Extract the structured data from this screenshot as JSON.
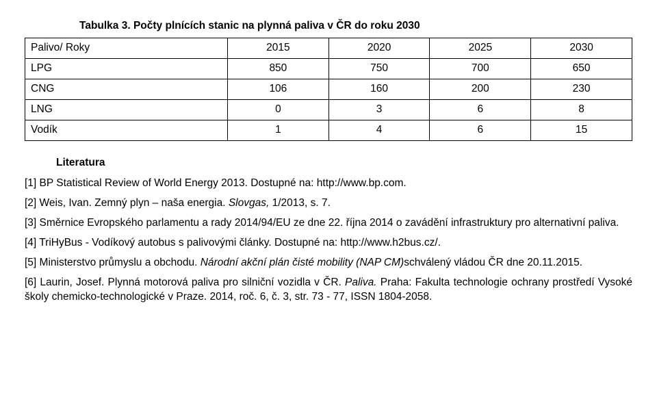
{
  "caption": "Tabulka 3.  Počty plnících stanic na plynná paliva v ČR do roku 2030",
  "table": {
    "header": [
      "Palivo/ Roky",
      "2015",
      "2020",
      "2025",
      "2030"
    ],
    "rows": [
      [
        "LPG",
        "850",
        "750",
        "700",
        "650"
      ],
      [
        "CNG",
        "106",
        "160",
        "200",
        "230"
      ],
      [
        "LNG",
        "0",
        "3",
        "6",
        "8"
      ],
      [
        "Vodík",
        "1",
        "4",
        "6",
        "15"
      ]
    ],
    "col_widths": [
      "28%",
      "18%",
      "18%",
      "18%",
      "18%"
    ]
  },
  "lit_heading": "Literatura",
  "refs": {
    "r1a": "[1] BP Statistical Review of World Energy 2013. Dostupné na:  http://www.bp.com.",
    "r2a": "[2] Weis, Ivan. Zemný plyn – naša energia. ",
    "r2b": "Slovgas,",
    "r2c": " 1/2013, s. 7.",
    "r3a": "[3] Směrnice Evropského parlamentu a rady 2014/94/EU ze dne 22. října 2014 o zavádění infrastruktury pro alternativní paliva.",
    "r4a": "[4] TriHyBus - Vodíkový autobus s palivovými články. Dostupné na: http://www.h2bus.cz/.",
    "r5a": "[5] Ministerstvo průmyslu a obchodu.  ",
    "r5b": "Národní akční plán čisté mobility (NAP CM)",
    "r5c": "schválený vládou ČR dne 20.11.2015.",
    "r6a": "[6] Laurin, Josef.  Plynná motorová paliva pro silniční vozidla v ČR. ",
    "r6b": "Paliva.",
    "r6c": "  Praha: Fakulta technologie ochrany prostředí Vysoké školy chemicko-technologické v Praze. 2014, roč. 6, č. 3, str. 73 - 77, ISSN 1804-2058."
  }
}
